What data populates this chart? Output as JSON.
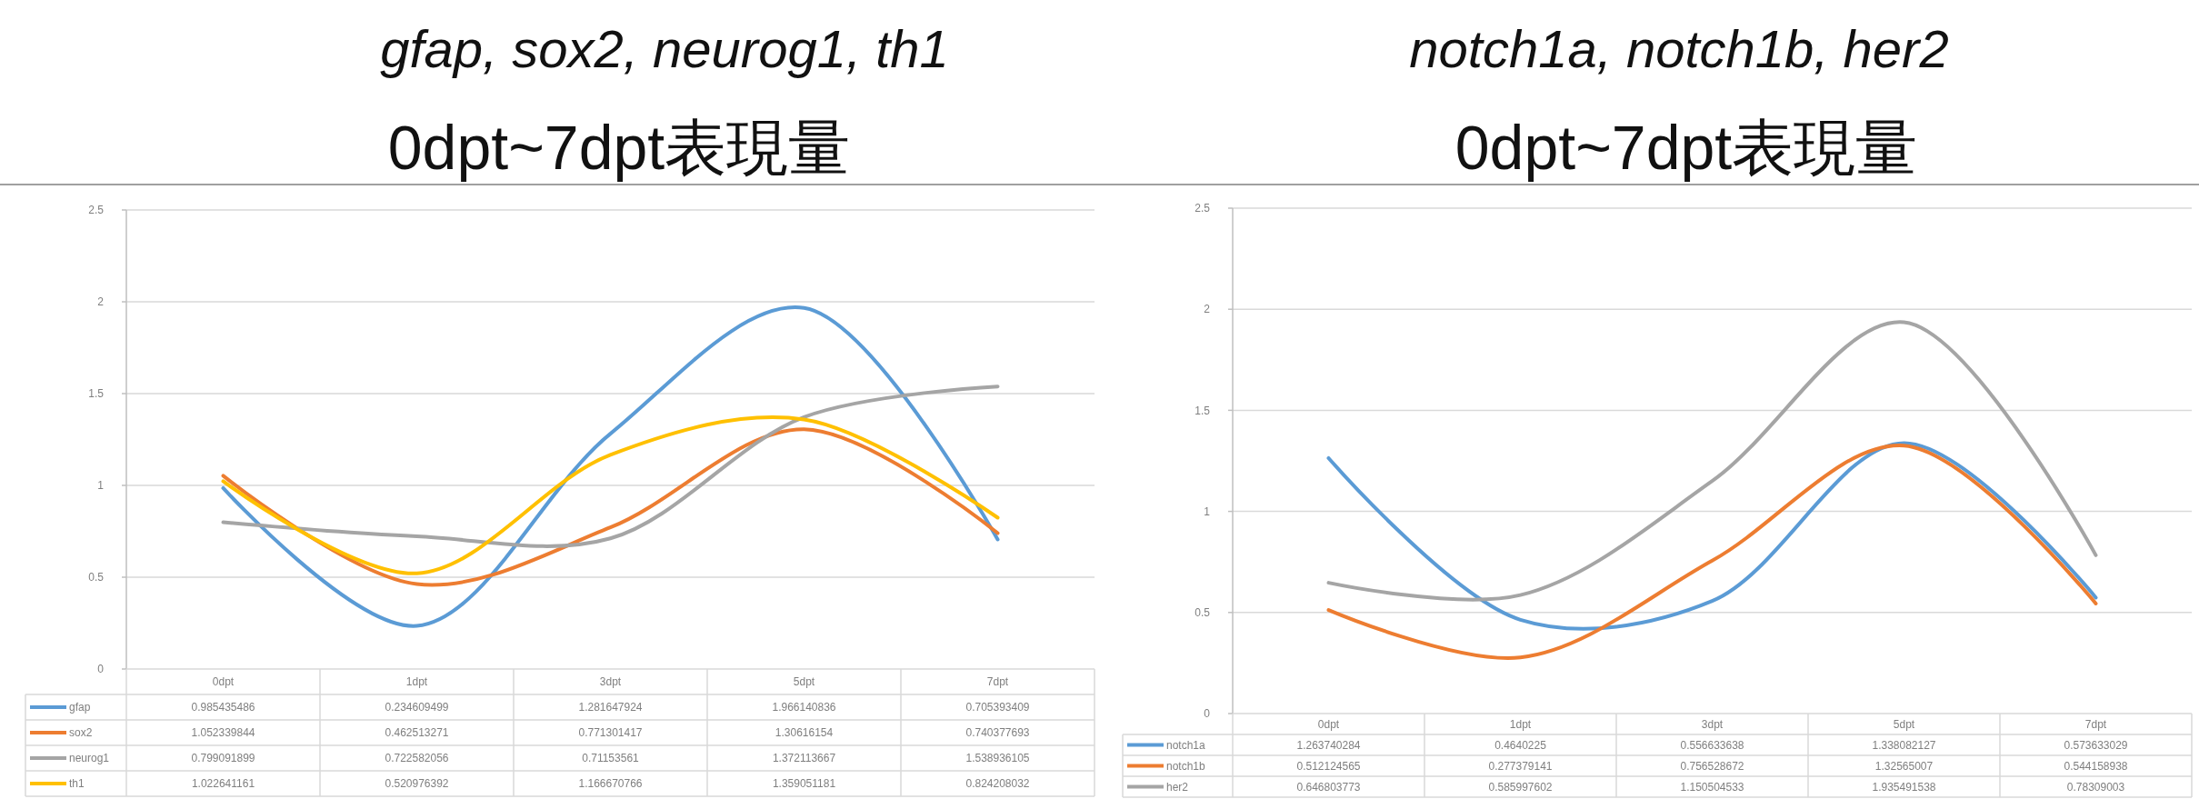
{
  "chart_data": [
    {
      "type": "line",
      "title": "gfap, sox2, neurog1, th1",
      "subtitle": "0dpt~7dpt表現量",
      "categories": [
        "0dpt",
        "1dpt",
        "3dpt",
        "5dpt",
        "7dpt"
      ],
      "series": [
        {
          "name": "gfap",
          "color": "#5b9bd5",
          "values": [
            0.985435486,
            0.234609499,
            1.281647924,
            1.966140836,
            0.705393409
          ]
        },
        {
          "name": "sox2",
          "color": "#ed7d31",
          "values": [
            1.052339844,
            0.462513271,
            0.771301417,
            1.30616154,
            0.740377693
          ]
        },
        {
          "name": "neurog1",
          "color": "#a5a5a5",
          "values": [
            0.799091899,
            0.722582056,
            0.71153561,
            1.372113667,
            1.538936105
          ]
        },
        {
          "name": "th1",
          "color": "#ffc000",
          "values": [
            1.022641161,
            0.520976392,
            1.166670766,
            1.359051181,
            0.824208032
          ]
        }
      ],
      "ylim": [
        0,
        2.5
      ],
      "yticks": [
        0,
        0.5,
        1,
        1.5,
        2,
        2.5
      ],
      "grid": "y",
      "legend": "bottom",
      "data_labels": true
    },
    {
      "type": "line",
      "title": "notch1a, notch1b, her2",
      "subtitle": "0dpt~7dpt表現量",
      "categories": [
        "0dpt",
        "1dpt",
        "3dpt",
        "5dpt",
        "7dpt"
      ],
      "series": [
        {
          "name": "notch1a",
          "color": "#5b9bd5",
          "values": [
            1.263740284,
            0.4640225,
            0.556633638,
            1.338082127,
            0.573633029
          ]
        },
        {
          "name": "notch1b",
          "color": "#ed7d31",
          "values": [
            0.512124565,
            0.277379141,
            0.756528672,
            1.32565007,
            0.544158938
          ]
        },
        {
          "name": "her2",
          "color": "#a5a5a5",
          "values": [
            0.646803773,
            0.585997602,
            1.150504533,
            1.935491538,
            0.78309003
          ]
        }
      ],
      "ylim": [
        0,
        2.5
      ],
      "yticks": [
        0,
        0.5,
        1,
        1.5,
        2,
        2.5
      ],
      "grid": "y",
      "legend": "bottom",
      "data_labels": true
    }
  ]
}
